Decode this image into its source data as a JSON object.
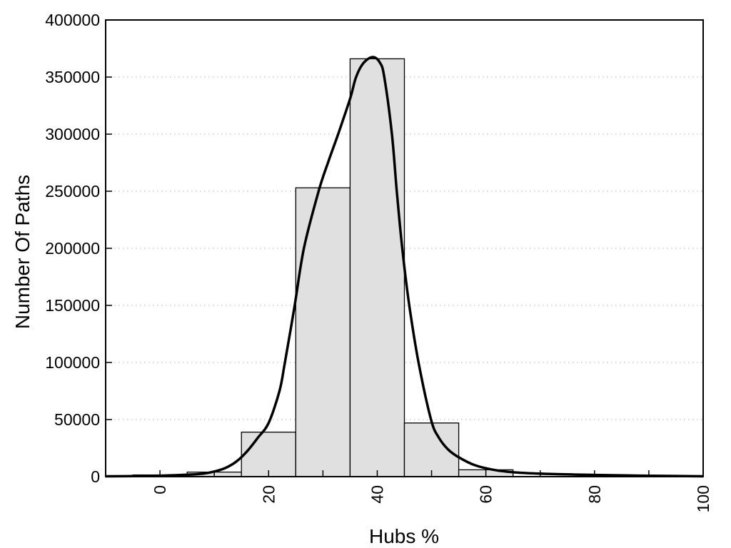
{
  "figure": {
    "background": "#ffffff",
    "text_color": "#000000"
  },
  "chart_data": {
    "type": "bar",
    "subtype": "histogram_with_density_curve",
    "title": "",
    "xlabel": "Hubs %",
    "ylabel": "Number Of Paths",
    "xlim": [
      -10,
      100
    ],
    "ylim": [
      0,
      400000
    ],
    "x_ticks": [
      0,
      10,
      20,
      30,
      40,
      50,
      60,
      70,
      80,
      90,
      100
    ],
    "x_labeled_ticks": [
      0,
      20,
      40,
      60,
      80,
      100
    ],
    "y_ticks": [
      0,
      50000,
      100000,
      150000,
      200000,
      250000,
      300000,
      350000,
      400000
    ],
    "grid": {
      "horizontal": true,
      "style": "dotted",
      "color": "#b4b4b4"
    },
    "legend": "none",
    "colors": {
      "bar_fill": "#e0e0e0",
      "bar_edge": "#000000",
      "curve": "#000000",
      "axis": "#000000"
    },
    "histogram": {
      "bin_width": 10,
      "bin_centers": [
        0,
        10,
        20,
        30,
        40,
        50,
        60
      ],
      "values": [
        1500,
        4000,
        39000,
        253000,
        366000,
        47000,
        6000
      ]
    },
    "curve_points": [
      [
        -10,
        300
      ],
      [
        -5,
        500
      ],
      [
        0,
        900
      ],
      [
        5,
        1700
      ],
      [
        8,
        2700
      ],
      [
        10,
        4500
      ],
      [
        12,
        7500
      ],
      [
        14,
        13000
      ],
      [
        16,
        22000
      ],
      [
        18,
        34000
      ],
      [
        20,
        47000
      ],
      [
        22,
        75000
      ],
      [
        23,
        100000
      ],
      [
        24.8,
        150000
      ],
      [
        26.5,
        200000
      ],
      [
        29.2,
        250000
      ],
      [
        31,
        276000
      ],
      [
        32.8,
        300000
      ],
      [
        35,
        331000
      ],
      [
        36.1,
        350000
      ],
      [
        37.5,
        362500
      ],
      [
        39.2,
        367500
      ],
      [
        40.5,
        362500
      ],
      [
        41.3,
        350000
      ],
      [
        42.7,
        300000
      ],
      [
        43.6,
        250000
      ],
      [
        44.6,
        200000
      ],
      [
        45.9,
        150000
      ],
      [
        47.6,
        100000
      ],
      [
        49.9,
        50000
      ],
      [
        51.3,
        34500
      ],
      [
        53,
        24000
      ],
      [
        55,
        17000
      ],
      [
        58,
        10000
      ],
      [
        62,
        5500
      ],
      [
        66,
        3500
      ],
      [
        72,
        2300
      ],
      [
        80,
        1500
      ],
      [
        90,
        800
      ],
      [
        100,
        300
      ]
    ]
  }
}
